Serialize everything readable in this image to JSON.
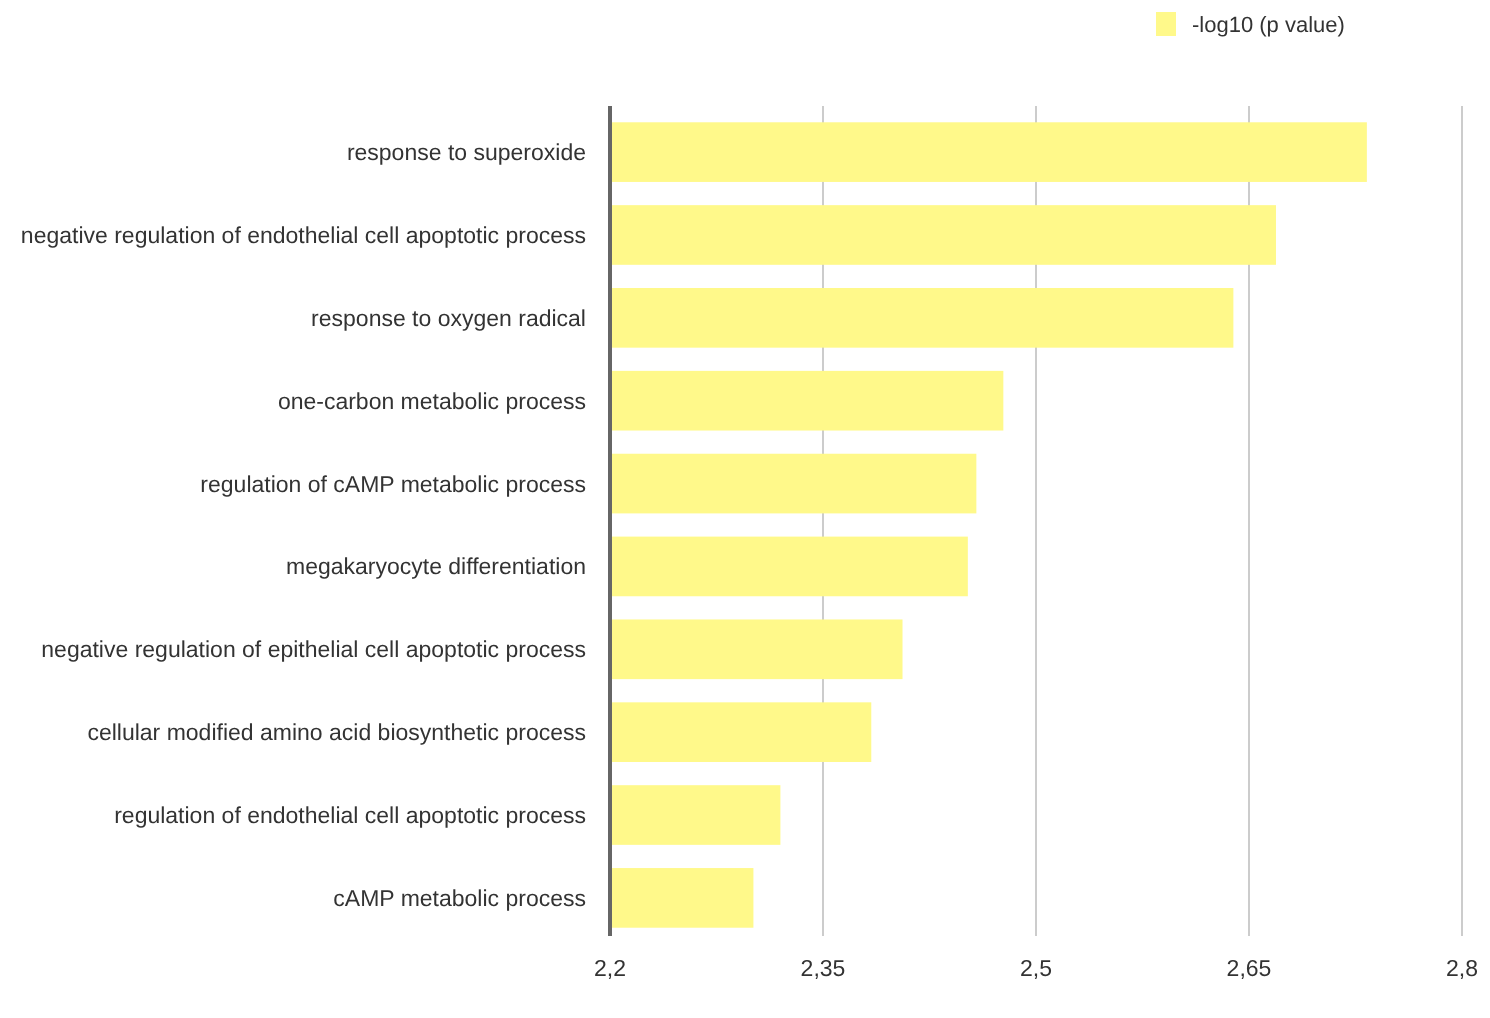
{
  "chart_data": {
    "type": "bar",
    "orientation": "horizontal",
    "categories": [
      "response to superoxide",
      "negative regulation of endothelial cell apoptotic process",
      "response to oxygen radical",
      "one-carbon metabolic process",
      "regulation of cAMP metabolic process",
      "megakaryocyte differentiation",
      "negative regulation of epithelial cell apoptotic process",
      "cellular modified amino acid biosynthetic process",
      "regulation of endothelial cell apoptotic process",
      "cAMP metabolic process"
    ],
    "series": [
      {
        "name": "-log10 (p value)",
        "color": "#fff98a",
        "values": [
          2.733,
          2.669,
          2.639,
          2.477,
          2.458,
          2.452,
          2.406,
          2.384,
          2.32,
          2.301
        ]
      }
    ],
    "xlim": [
      2.2,
      2.8
    ],
    "xticks": [
      {
        "value": 2.2,
        "label": "2,2"
      },
      {
        "value": 2.35,
        "label": "2,35"
      },
      {
        "value": 2.5,
        "label": "2,5"
      },
      {
        "value": 2.65,
        "label": "2,65"
      },
      {
        "value": 2.8,
        "label": "2,8"
      }
    ],
    "grid": "x",
    "legend": "top right"
  }
}
